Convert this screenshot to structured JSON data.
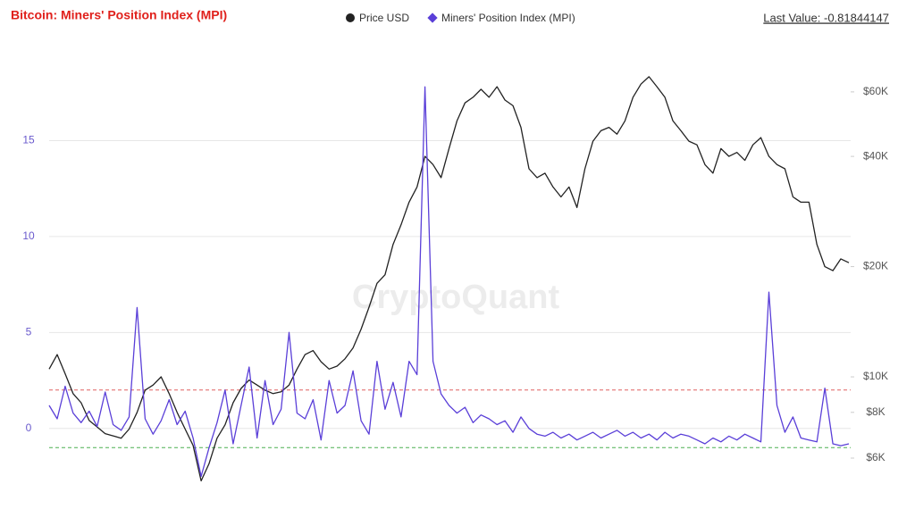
{
  "chart_data": {
    "type": "line",
    "title": "Bitcoin: Miners' Position Index (MPI)",
    "last_value": "Last Value: -0.81844147",
    "watermark": "CryptoQuant",
    "ylim": [
      -3.5,
      20
    ],
    "yticks": [
      0,
      5,
      10,
      15
    ],
    "y2lim": [
      4740,
      80750
    ],
    "y2scale": "log",
    "y2ticks": [
      {
        "value": 6000,
        "label": "$6K"
      },
      {
        "value": 8000,
        "label": "$8K"
      },
      {
        "value": 10000,
        "label": "$10K"
      },
      {
        "value": 20000,
        "label": "$20K"
      },
      {
        "value": 40000,
        "label": "$40K"
      },
      {
        "value": 60000,
        "label": "$60K"
      }
    ],
    "grid": true,
    "reference_lines": [
      {
        "value": 2,
        "color": "#e06060"
      },
      {
        "value": -1,
        "color": "#4caf50"
      }
    ],
    "series": [
      {
        "name": "Price USD",
        "color": "#222222",
        "axis": "y2",
        "marker": "circle",
        "values": [
          10500,
          11500,
          10200,
          9000,
          8500,
          7600,
          7300,
          7000,
          6900,
          6800,
          7200,
          8000,
          9200,
          9500,
          10000,
          9000,
          8000,
          7200,
          6500,
          5200,
          5800,
          6800,
          7400,
          8500,
          9300,
          9800,
          9500,
          9200,
          9000,
          9100,
          9500,
          10500,
          11500,
          11800,
          11000,
          10500,
          10700,
          11200,
          12000,
          13500,
          15500,
          18000,
          19000,
          23000,
          26000,
          30000,
          33000,
          40000,
          38000,
          35000,
          42000,
          50000,
          56000,
          58000,
          61000,
          58000,
          62000,
          57000,
          55000,
          48000,
          37000,
          35000,
          36000,
          33000,
          31000,
          33000,
          29000,
          37000,
          44000,
          47000,
          48000,
          46000,
          50000,
          58000,
          63000,
          66000,
          62000,
          58000,
          50000,
          47000,
          44000,
          43000,
          38000,
          36000,
          42000,
          40000,
          41000,
          39000,
          43000,
          45000,
          40000,
          38000,
          37000,
          31000,
          30000,
          30000,
          23000,
          20000,
          19500,
          21000,
          20500
        ]
      },
      {
        "name": "Miners' Position Index (MPI)",
        "color": "#5a3fd8",
        "axis": "y",
        "marker": "diamond",
        "values": [
          1.2,
          0.5,
          2.2,
          0.8,
          0.3,
          0.9,
          0.1,
          1.9,
          0.2,
          -0.1,
          0.6,
          6.3,
          0.5,
          -0.3,
          0.4,
          1.5,
          0.2,
          0.9,
          -0.5,
          -2.5,
          -1.0,
          0.3,
          2.0,
          -0.8,
          1.2,
          3.2,
          -0.5,
          2.5,
          0.2,
          1.0,
          5.0,
          0.8,
          0.5,
          1.5,
          -0.6,
          2.5,
          0.8,
          1.2,
          3.0,
          0.4,
          -0.3,
          3.5,
          1.0,
          2.4,
          0.6,
          3.5,
          2.8,
          17.8,
          3.5,
          1.8,
          1.2,
          0.8,
          1.1,
          0.3,
          0.7,
          0.5,
          0.2,
          0.4,
          -0.2,
          0.6,
          0.0,
          -0.3,
          -0.4,
          -0.2,
          -0.5,
          -0.3,
          -0.6,
          -0.4,
          -0.2,
          -0.5,
          -0.3,
          -0.1,
          -0.4,
          -0.2,
          -0.5,
          -0.3,
          -0.6,
          -0.2,
          -0.5,
          -0.3,
          -0.4,
          -0.6,
          -0.8,
          -0.5,
          -0.7,
          -0.4,
          -0.6,
          -0.3,
          -0.5,
          -0.7,
          7.1,
          1.2,
          -0.2,
          0.6,
          -0.5,
          -0.6,
          -0.7,
          2.1,
          -0.8,
          -0.9,
          -0.8
        ]
      }
    ]
  }
}
